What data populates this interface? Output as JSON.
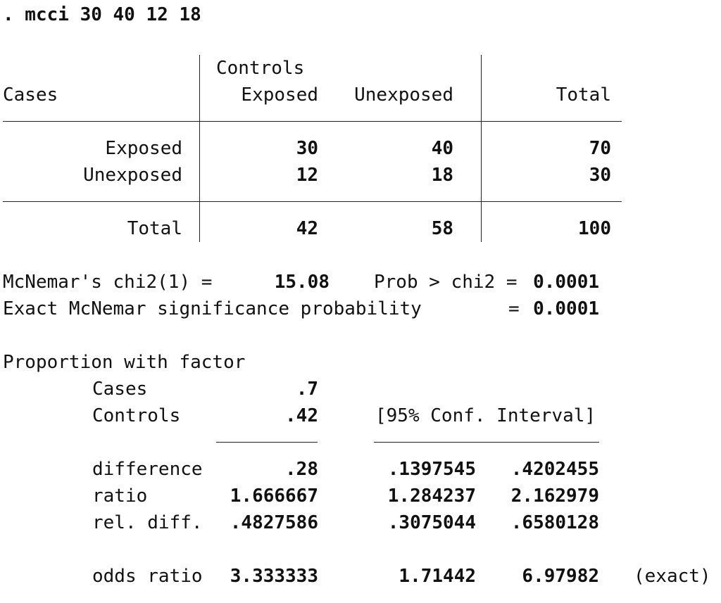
{
  "command": ". mcci 30 40 12 18",
  "table": {
    "controls_label": "Controls",
    "cases_label": "Cases",
    "col_exposed": "Exposed",
    "col_unexposed": "Unexposed",
    "col_total": "Total",
    "row_exposed": {
      "label": "Exposed",
      "exposed": "30",
      "unexposed": "40",
      "total": "70"
    },
    "row_unexposed": {
      "label": "Unexposed",
      "exposed": "12",
      "unexposed": "18",
      "total": "30"
    },
    "row_total": {
      "label": "Total",
      "exposed": "42",
      "unexposed": "58",
      "total": "100"
    }
  },
  "mcnemar": {
    "chi2_label": "McNemar's chi2(1) =",
    "chi2_value": "15.08",
    "prob_label": "Prob > chi2 =",
    "prob_value": "0.0001",
    "exact_label": "Exact McNemar significance probability",
    "exact_eq": "=",
    "exact_value": "0.0001"
  },
  "proportion": {
    "heading": "Proportion with factor",
    "cases_label": "Cases",
    "cases_value": ".7",
    "controls_label": "Controls",
    "controls_value": ".42",
    "ci_label": "[95% Conf. Interval]",
    "difference": {
      "label": "difference",
      "value": ".28",
      "lower": ".1397545",
      "upper": ".4202455"
    },
    "ratio": {
      "label": "ratio",
      "value": "1.666667",
      "lower": "1.284237",
      "upper": "2.162979"
    },
    "rel_diff": {
      "label": "rel. diff.",
      "value": ".4827586",
      "lower": ".3075044",
      "upper": ".6580128"
    },
    "odds_ratio": {
      "label": "odds ratio",
      "value": "3.333333",
      "lower": "1.71442",
      "upper": "6.97982",
      "note": "(exact)"
    }
  }
}
